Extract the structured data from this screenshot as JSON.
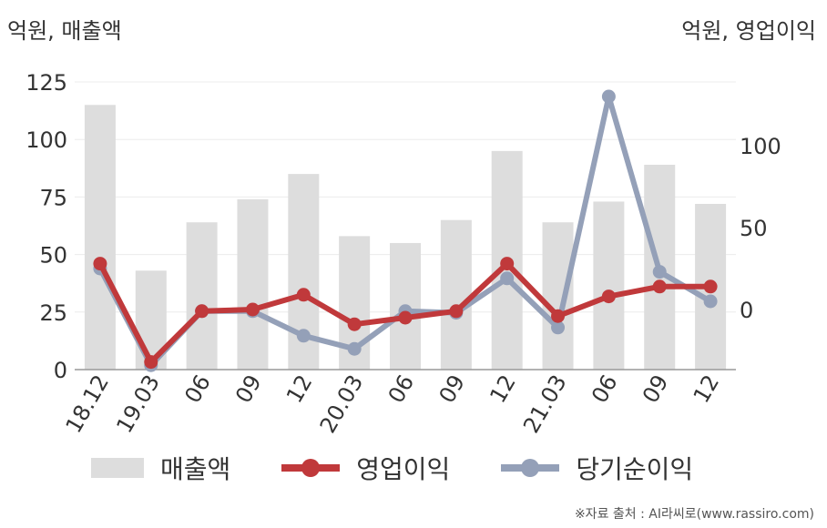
{
  "chart_data": {
    "type": "bar",
    "left_axis_title": "억원, 매출액",
    "right_axis_title": "억원, 영업이익",
    "categories": [
      "18.12",
      "19.03",
      "06",
      "09",
      "12",
      "20.03",
      "06",
      "09",
      "12",
      "21.03",
      "06",
      "09",
      "12"
    ],
    "left_axis": {
      "min": 0,
      "max": 125,
      "ticks": [
        0,
        25,
        50,
        75,
        100,
        125
      ]
    },
    "right_axis": {
      "min": -38,
      "max": 140,
      "ticks": [
        0,
        50,
        100
      ]
    },
    "series": [
      {
        "name": "매출액",
        "type": "bar",
        "axis": "left",
        "color": "#dddddd",
        "values": [
          115,
          43,
          64,
          74,
          85,
          58,
          55,
          65,
          95,
          64,
          73,
          89,
          72
        ]
      },
      {
        "name": "영업이익",
        "type": "line",
        "axis": "right",
        "color": "#c0393b",
        "values": [
          28,
          -32,
          -1,
          0,
          9,
          -9,
          -5,
          -1,
          28,
          -4,
          8,
          14,
          14
        ]
      },
      {
        "name": "당기순이익",
        "type": "line",
        "axis": "right",
        "color": "#94a0b8",
        "values": [
          25,
          -34,
          -1,
          -1,
          -16,
          -24,
          -1,
          -2,
          19,
          -11,
          130,
          23,
          5
        ]
      }
    ],
    "grid": true,
    "legend_position": "bottom"
  },
  "source": "※자료 출처 : AI라씨로(www.rassiro.com)"
}
